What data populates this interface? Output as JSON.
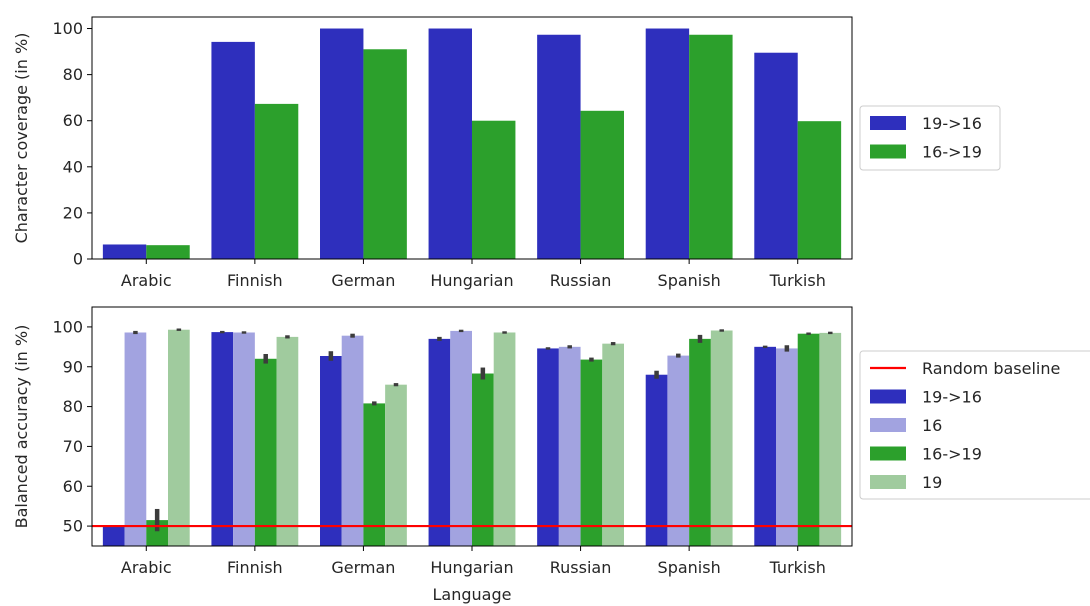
{
  "chart_data": [
    {
      "type": "bar",
      "ylabel": "Character coverage (in %)",
      "xlabel": "",
      "ylim": [
        0,
        105
      ],
      "yticks": [
        0,
        20,
        40,
        60,
        80,
        100
      ],
      "categories": [
        "Arabic",
        "Finnish",
        "German",
        "Hungarian",
        "Russian",
        "Spanish",
        "Turkish"
      ],
      "series": [
        {
          "name": "19->16",
          "color": "#2e2fbd",
          "values": [
            6.3,
            94.2,
            100,
            100,
            97.3,
            100,
            89.5
          ]
        },
        {
          "name": "16->19",
          "color": "#2ca02c",
          "values": [
            6.0,
            67.3,
            91.0,
            60.0,
            64.3,
            97.3,
            59.8
          ]
        }
      ],
      "legend_position": "right"
    },
    {
      "type": "bar",
      "ylabel": "Balanced accuracy (in %)",
      "xlabel": "Language",
      "ylim": [
        45,
        105
      ],
      "yticks": [
        50,
        60,
        70,
        80,
        90,
        100
      ],
      "categories": [
        "Arabic",
        "Finnish",
        "German",
        "Hungarian",
        "Russian",
        "Spanish",
        "Turkish"
      ],
      "series": [
        {
          "name": "19->16",
          "color": "#2e2fbd",
          "values": [
            50.0,
            98.7,
            92.7,
            97.0,
            94.6,
            88.0,
            95.0
          ],
          "err": [
            0.2,
            0.3,
            1.2,
            0.5,
            0.3,
            1.0,
            0.3
          ]
        },
        {
          "name": "16",
          "color": "#a2a3e0",
          "values": [
            98.6,
            98.6,
            97.8,
            99.0,
            95.0,
            92.8,
            94.6
          ],
          "err": [
            0.4,
            0.3,
            0.5,
            0.3,
            0.4,
            0.5,
            0.8
          ]
        },
        {
          "name": "16->19",
          "color": "#2ca02c",
          "values": [
            51.5,
            92.0,
            80.8,
            88.3,
            91.8,
            97.0,
            98.3
          ],
          "err": [
            2.8,
            1.2,
            0.5,
            1.5,
            0.5,
            1.0,
            0.3
          ]
        },
        {
          "name": "19",
          "color": "#a0cb9e",
          "values": [
            99.3,
            97.5,
            85.5,
            98.6,
            95.8,
            99.1,
            98.5
          ],
          "err": [
            0.3,
            0.4,
            0.4,
            0.3,
            0.4,
            0.3,
            0.3
          ]
        }
      ],
      "baseline": {
        "name": "Random baseline",
        "value": 50,
        "color": "#ff0000"
      },
      "legend_position": "right"
    }
  ]
}
